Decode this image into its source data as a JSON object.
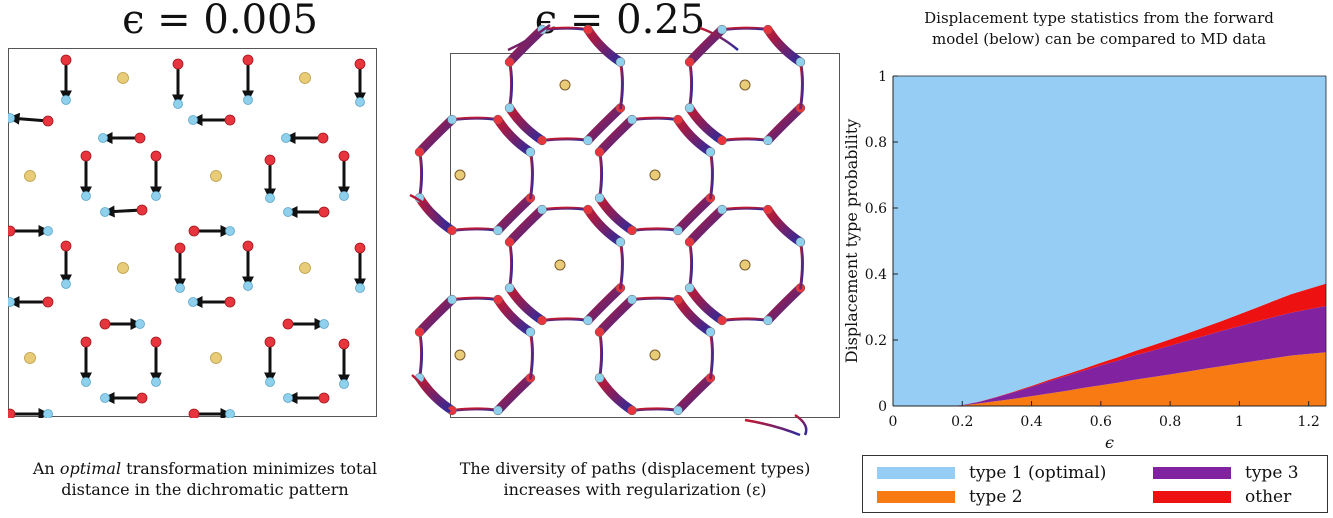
{
  "left_panel": {
    "title": "ϵ = 0.005",
    "caption_line1_pre": "An ",
    "caption_line1_em": "optimal",
    "caption_line1_post": " transformation minimizes total",
    "caption_line2": "distance in the dichromatic pattern"
  },
  "middle_panel": {
    "title": "ϵ = 0.25",
    "caption_line1": "The diversity of paths (displacement types)",
    "caption_line2": "increases with regularization (ε)"
  },
  "colors": {
    "type1": "#95cdf4",
    "type2": "#f77b12",
    "type3": "#8123a0",
    "other": "#ee1111",
    "atom_red": "#e8343c",
    "atom_blue": "#8fd0ec",
    "atom_gold": "#e9cc78",
    "path_red": "#c4182e",
    "path_blue": "#2c2a9e"
  },
  "chart_data": {
    "type": "area",
    "stacked": true,
    "title_line1": "Displacement type statistics from the forward",
    "title_line2": "model (below) can be compared to MD data",
    "xlabel": "ϵ",
    "ylabel": "Displacement type probability",
    "xlim": [
      0,
      1.25
    ],
    "ylim": [
      0,
      1
    ],
    "xticks": [
      "0",
      "0.2",
      "0.4",
      "0.6",
      "0.8",
      "1",
      "1.2"
    ],
    "yticks": [
      "0",
      "0.2",
      "0.4",
      "0.6",
      "0.8",
      "1"
    ],
    "x": [
      0,
      0.15,
      0.2,
      0.25,
      0.3,
      0.35,
      0.4,
      0.45,
      0.5,
      0.55,
      0.6,
      0.65,
      0.7,
      0.75,
      0.8,
      0.85,
      0.9,
      0.95,
      1.0,
      1.05,
      1.1,
      1.15,
      1.2,
      1.25
    ],
    "series": [
      {
        "name": "type 2",
        "color_key": "type2",
        "values": [
          0,
          0,
          0.002,
          0.008,
          0.015,
          0.022,
          0.03,
          0.038,
          0.046,
          0.055,
          0.063,
          0.071,
          0.08,
          0.088,
          0.096,
          0.104,
          0.113,
          0.121,
          0.129,
          0.137,
          0.145,
          0.153,
          0.158,
          0.163
        ]
      },
      {
        "name": "type 3",
        "color_key": "type3",
        "values": [
          0,
          0,
          0.001,
          0.005,
          0.012,
          0.02,
          0.028,
          0.037,
          0.045,
          0.052,
          0.06,
          0.067,
          0.074,
          0.08,
          0.087,
          0.094,
          0.1,
          0.107,
          0.113,
          0.119,
          0.125,
          0.13,
          0.135,
          0.14
        ]
      },
      {
        "name": "other",
        "color_key": "other",
        "values": [
          0,
          0,
          0,
          0.0005,
          0.001,
          0.002,
          0.003,
          0.004,
          0.005,
          0.006,
          0.008,
          0.01,
          0.013,
          0.016,
          0.019,
          0.022,
          0.026,
          0.03,
          0.036,
          0.042,
          0.049,
          0.056,
          0.062,
          0.068
        ]
      },
      {
        "name": "type 1 (optimal)",
        "color_key": "type1",
        "fill_to_top": true,
        "values": [
          1,
          1,
          0.997,
          0.9865,
          0.972,
          0.956,
          0.939,
          0.921,
          0.904,
          0.887,
          0.869,
          0.852,
          0.833,
          0.816,
          0.798,
          0.78,
          0.761,
          0.742,
          0.722,
          0.702,
          0.681,
          0.661,
          0.645,
          0.629
        ]
      }
    ],
    "legend": [
      {
        "label": "type 1 (optimal)",
        "color_key": "type1"
      },
      {
        "label": "type 3",
        "color_key": "type3"
      },
      {
        "label": "type 2",
        "color_key": "type2"
      },
      {
        "label": "other",
        "color_key": "other"
      }
    ],
    "legend_position": "below"
  }
}
